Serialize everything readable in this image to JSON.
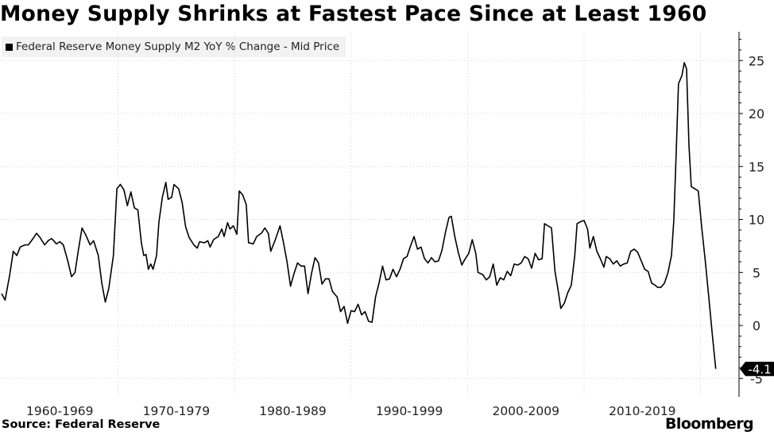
{
  "title": "Money Supply Shrinks at Fastest Pace Since at Least 1960",
  "legend": "Federal Reserve Money Supply M2 YoY % Change - Mid Price",
  "source": "Source: Federal Reserve",
  "brand": "Bloomberg",
  "colors": {
    "line": "#000000",
    "grid": "#d0d0d0",
    "legend_bg": "#f2f2f2"
  },
  "chart_data": {
    "type": "line",
    "title": "Money Supply Shrinks at Fastest Pace Since at Least 1960",
    "series_name": "Federal Reserve Money Supply M2 YoY % Change - Mid Price",
    "xlim": [
      1960,
      2023.3
    ],
    "ylim": [
      -5,
      27.5
    ],
    "y_ticks": [
      25,
      20,
      15,
      10,
      5,
      0,
      -5
    ],
    "x_categories": [
      "1960-1969",
      "1970-1979",
      "1980-1989",
      "1990-1999",
      "2000-2009",
      "2010-2019"
    ],
    "last_value_label": "-4.1",
    "points": [
      [
        1960.0,
        3.0
      ],
      [
        1960.3,
        2.4
      ],
      [
        1960.7,
        4.8
      ],
      [
        1961.0,
        7.0
      ],
      [
        1961.3,
        6.6
      ],
      [
        1961.6,
        7.4
      ],
      [
        1962.0,
        7.6
      ],
      [
        1962.3,
        7.6
      ],
      [
        1962.7,
        8.2
      ],
      [
        1963.0,
        8.7
      ],
      [
        1963.3,
        8.3
      ],
      [
        1963.7,
        7.6
      ],
      [
        1964.0,
        8.0
      ],
      [
        1964.3,
        8.2
      ],
      [
        1964.7,
        7.7
      ],
      [
        1965.0,
        7.9
      ],
      [
        1965.3,
        7.6
      ],
      [
        1965.7,
        6.0
      ],
      [
        1966.0,
        4.6
      ],
      [
        1966.3,
        5.0
      ],
      [
        1966.6,
        7.2
      ],
      [
        1966.9,
        9.2
      ],
      [
        1967.2,
        8.6
      ],
      [
        1967.6,
        7.6
      ],
      [
        1967.9,
        8.0
      ],
      [
        1968.3,
        6.6
      ],
      [
        1968.6,
        4.0
      ],
      [
        1968.9,
        2.2
      ],
      [
        1969.2,
        3.5
      ],
      [
        1969.6,
        6.6
      ],
      [
        1969.9,
        12.9
      ],
      [
        1970.2,
        13.3
      ],
      [
        1970.5,
        12.8
      ],
      [
        1970.8,
        11.3
      ],
      [
        1971.1,
        12.6
      ],
      [
        1971.4,
        11.1
      ],
      [
        1971.7,
        10.9
      ],
      [
        1972.0,
        7.8
      ],
      [
        1972.2,
        6.6
      ],
      [
        1972.4,
        6.7
      ],
      [
        1972.6,
        5.3
      ],
      [
        1972.8,
        5.8
      ],
      [
        1973.0,
        5.3
      ],
      [
        1973.3,
        6.6
      ],
      [
        1973.5,
        9.7
      ],
      [
        1973.8,
        12.1
      ],
      [
        1974.1,
        13.5
      ],
      [
        1974.3,
        11.9
      ],
      [
        1974.6,
        12.1
      ],
      [
        1974.8,
        13.3
      ],
      [
        1975.2,
        12.9
      ],
      [
        1975.5,
        11.6
      ],
      [
        1975.8,
        9.3
      ],
      [
        1976.1,
        8.3
      ],
      [
        1976.5,
        7.6
      ],
      [
        1976.8,
        7.3
      ],
      [
        1977.0,
        7.9
      ],
      [
        1977.4,
        7.8
      ],
      [
        1977.7,
        8.0
      ],
      [
        1977.9,
        7.4
      ],
      [
        1978.2,
        8.1
      ],
      [
        1978.6,
        8.4
      ],
      [
        1978.9,
        9.1
      ],
      [
        1979.1,
        8.4
      ],
      [
        1979.4,
        9.7
      ],
      [
        1979.6,
        9.1
      ],
      [
        1979.9,
        9.4
      ],
      [
        1980.2,
        8.6
      ],
      [
        1980.4,
        12.7
      ],
      [
        1980.7,
        12.3
      ],
      [
        1981.0,
        11.4
      ],
      [
        1981.2,
        7.8
      ],
      [
        1981.6,
        7.7
      ],
      [
        1981.9,
        8.4
      ],
      [
        1982.3,
        8.7
      ],
      [
        1982.6,
        9.2
      ],
      [
        1982.9,
        8.7
      ],
      [
        1983.1,
        7.0
      ],
      [
        1983.5,
        8.1
      ],
      [
        1983.9,
        9.4
      ],
      [
        1984.2,
        7.8
      ],
      [
        1984.5,
        6.0
      ],
      [
        1984.8,
        3.7
      ],
      [
        1985.1,
        4.9
      ],
      [
        1985.4,
        5.9
      ],
      [
        1985.7,
        5.6
      ],
      [
        1986.0,
        5.6
      ],
      [
        1986.3,
        3.0
      ],
      [
        1986.6,
        4.9
      ],
      [
        1986.9,
        6.4
      ],
      [
        1987.2,
        5.9
      ],
      [
        1987.5,
        3.9
      ],
      [
        1987.8,
        4.4
      ],
      [
        1988.1,
        4.4
      ],
      [
        1988.4,
        3.2
      ],
      [
        1988.8,
        2.7
      ],
      [
        1989.1,
        1.3
      ],
      [
        1989.4,
        1.8
      ],
      [
        1989.7,
        0.2
      ],
      [
        1990.0,
        1.4
      ],
      [
        1990.3,
        1.3
      ],
      [
        1990.6,
        2.0
      ],
      [
        1990.9,
        1.0
      ],
      [
        1991.2,
        1.3
      ],
      [
        1991.5,
        0.4
      ],
      [
        1991.8,
        0.3
      ],
      [
        1992.1,
        2.7
      ],
      [
        1992.4,
        4.0
      ],
      [
        1992.7,
        5.6
      ],
      [
        1993.0,
        4.3
      ],
      [
        1993.3,
        4.4
      ],
      [
        1993.6,
        5.3
      ],
      [
        1993.9,
        4.6
      ],
      [
        1994.2,
        5.3
      ],
      [
        1994.5,
        6.3
      ],
      [
        1994.8,
        6.5
      ],
      [
        1995.1,
        7.5
      ],
      [
        1995.4,
        8.4
      ],
      [
        1995.7,
        7.2
      ],
      [
        1996.0,
        7.4
      ],
      [
        1996.3,
        6.3
      ],
      [
        1996.6,
        5.9
      ],
      [
        1996.9,
        6.4
      ],
      [
        1997.2,
        6.0
      ],
      [
        1997.5,
        6.1
      ],
      [
        1997.8,
        7.1
      ],
      [
        1998.1,
        8.8
      ],
      [
        1998.4,
        10.2
      ],
      [
        1998.6,
        10.3
      ],
      [
        1998.9,
        8.4
      ],
      [
        1999.2,
        6.9
      ],
      [
        1999.5,
        5.7
      ],
      [
        1999.8,
        6.3
      ],
      [
        2000.1,
        6.8
      ],
      [
        2000.4,
        8.1
      ],
      [
        2000.7,
        6.8
      ],
      [
        2000.9,
        5.0
      ],
      [
        2001.3,
        4.8
      ],
      [
        2001.6,
        4.3
      ],
      [
        2001.9,
        4.6
      ],
      [
        2002.2,
        5.8
      ],
      [
        2002.5,
        3.8
      ],
      [
        2002.8,
        4.5
      ],
      [
        2003.1,
        4.3
      ],
      [
        2003.4,
        5.1
      ],
      [
        2003.7,
        4.7
      ],
      [
        2004.0,
        5.8
      ],
      [
        2004.3,
        5.7
      ],
      [
        2004.6,
        5.9
      ],
      [
        2004.9,
        6.5
      ],
      [
        2005.2,
        6.3
      ],
      [
        2005.5,
        5.4
      ],
      [
        2005.8,
        6.8
      ],
      [
        2006.1,
        6.2
      ],
      [
        2006.4,
        6.3
      ],
      [
        2006.6,
        9.6
      ],
      [
        2006.9,
        9.4
      ],
      [
        2007.2,
        9.2
      ],
      [
        2007.5,
        5.1
      ],
      [
        2007.8,
        3.1
      ],
      [
        2008.0,
        1.6
      ],
      [
        2008.3,
        2.1
      ],
      [
        2008.6,
        3.1
      ],
      [
        2008.9,
        3.8
      ],
      [
        2009.2,
        6.6
      ],
      [
        2009.4,
        9.6
      ],
      [
        2009.7,
        9.8
      ],
      [
        2010.0,
        9.9
      ],
      [
        2010.3,
        9.1
      ],
      [
        2010.5,
        7.3
      ],
      [
        2010.8,
        8.4
      ],
      [
        2011.1,
        7.0
      ],
      [
        2011.4,
        6.3
      ],
      [
        2011.7,
        5.5
      ],
      [
        2011.9,
        6.5
      ],
      [
        2012.2,
        6.3
      ],
      [
        2012.5,
        5.8
      ],
      [
        2012.8,
        6.1
      ],
      [
        2013.1,
        5.6
      ],
      [
        2013.4,
        5.8
      ],
      [
        2013.7,
        5.9
      ],
      [
        2014.0,
        7.0
      ],
      [
        2014.3,
        7.2
      ],
      [
        2014.6,
        6.9
      ],
      [
        2014.9,
        6.1
      ],
      [
        2015.2,
        5.3
      ],
      [
        2015.5,
        5.1
      ],
      [
        2015.8,
        4.0
      ],
      [
        2016.1,
        3.8
      ],
      [
        2016.3,
        3.6
      ],
      [
        2016.6,
        3.6
      ],
      [
        2016.9,
        4.0
      ],
      [
        2017.2,
        5.0
      ],
      [
        2017.5,
        6.6
      ],
      [
        2017.7,
        9.9
      ],
      [
        2017.9,
        16.0
      ],
      [
        2018.1,
        22.8
      ],
      [
        2018.4,
        23.6
      ],
      [
        2018.6,
        24.8
      ],
      [
        2018.8,
        24.2
      ],
      [
        2019.0,
        17.0
      ],
      [
        2019.2,
        13.1
      ],
      [
        2019.5,
        12.9
      ],
      [
        2019.8,
        12.7
      ],
      [
        2020.1,
        9.2
      ],
      [
        2020.4,
        6.1
      ],
      [
        2020.7,
        2.7
      ],
      [
        2021.0,
        -0.8
      ],
      [
        2021.3,
        -4.1
      ]
    ]
  }
}
